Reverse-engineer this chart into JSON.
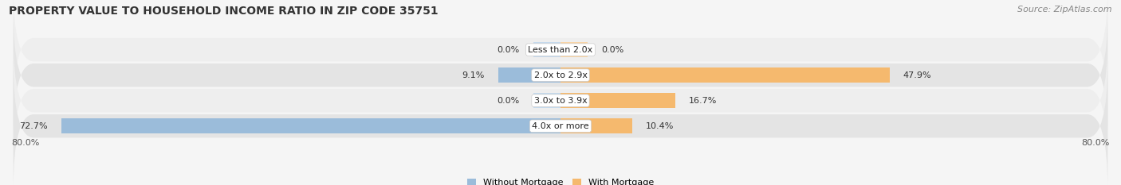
{
  "title": "PROPERTY VALUE TO HOUSEHOLD INCOME RATIO IN ZIP CODE 35751",
  "source": "Source: ZipAtlas.com",
  "categories": [
    "Less than 2.0x",
    "2.0x to 2.9x",
    "3.0x to 3.9x",
    "4.0x or more"
  ],
  "without_mortgage": [
    0.0,
    9.1,
    0.0,
    72.7
  ],
  "with_mortgage": [
    0.0,
    47.9,
    16.7,
    10.4
  ],
  "color_without": "#9bbcda",
  "color_with": "#f5b96e",
  "color_without_light": "#c5d9ec",
  "color_with_light": "#f9d4a5",
  "axis_min": -80.0,
  "axis_max": 80.0,
  "axis_label_left": "80.0%",
  "axis_label_right": "80.0%",
  "bar_height": 0.58,
  "row_bg_even": "#eeeeee",
  "row_bg_odd": "#e4e4e4",
  "bg_color": "#f5f5f5",
  "title_fontsize": 10,
  "source_fontsize": 8,
  "label_fontsize": 8,
  "category_fontsize": 8,
  "legend_fontsize": 8,
  "stub_size": 4.0
}
